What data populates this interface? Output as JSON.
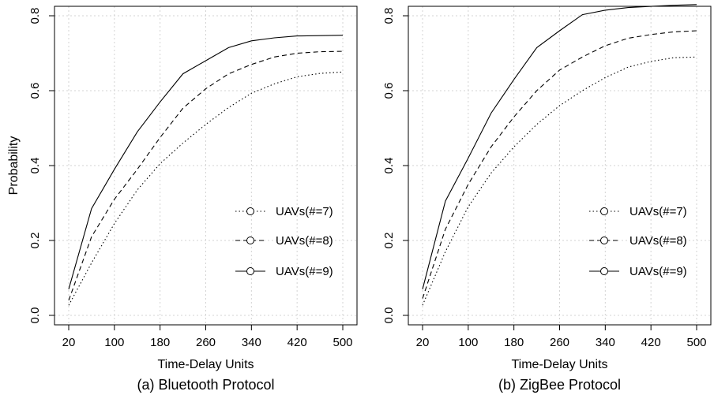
{
  "chart_data": [
    {
      "type": "line",
      "caption": "(a) Bluetooth Protocol",
      "xlabel": "Time-Delay Units",
      "ylabel": "Probability",
      "xlim": [
        20,
        500
      ],
      "ylim": [
        0,
        0.8
      ],
      "x_ticks": [
        20,
        100,
        180,
        260,
        340,
        420,
        500
      ],
      "y_ticks": [
        0.0,
        0.2,
        0.4,
        0.6,
        0.8
      ],
      "y_tick_labels": [
        "0.0",
        "0.2",
        "0.4",
        "0.6",
        "0.8"
      ],
      "grid": true,
      "legend_position": "right",
      "x": [
        20,
        60,
        100,
        140,
        180,
        220,
        260,
        300,
        340,
        380,
        420,
        460,
        500
      ],
      "series": [
        {
          "name": "UAVs(#=7)",
          "dash": "dotted",
          "values": [
            0.027,
            0.14,
            0.245,
            0.335,
            0.405,
            0.46,
            0.51,
            0.555,
            0.593,
            0.618,
            0.637,
            0.646,
            0.65
          ]
        },
        {
          "name": "UAVs(#=8)",
          "dash": "dashed",
          "values": [
            0.04,
            0.21,
            0.31,
            0.39,
            0.475,
            0.553,
            0.605,
            0.645,
            0.67,
            0.69,
            0.7,
            0.704,
            0.705
          ]
        },
        {
          "name": "UAVs(#=9)",
          "dash": "solid",
          "values": [
            0.07,
            0.285,
            0.39,
            0.49,
            0.57,
            0.645,
            0.68,
            0.715,
            0.733,
            0.741,
            0.746,
            0.747,
            0.748
          ]
        }
      ]
    },
    {
      "type": "line",
      "caption": "(b) ZigBee Protocol",
      "xlabel": "Time-Delay Units",
      "ylabel": "Probability",
      "xlim": [
        20,
        500
      ],
      "ylim": [
        0,
        0.8
      ],
      "x_ticks": [
        20,
        100,
        180,
        260,
        340,
        420,
        500
      ],
      "y_ticks": [
        0.0,
        0.2,
        0.4,
        0.6,
        0.8
      ],
      "y_tick_labels": [
        "0.0",
        "0.2",
        "0.4",
        "0.6",
        "0.8"
      ],
      "grid": true,
      "legend_position": "right",
      "x": [
        20,
        60,
        100,
        140,
        180,
        220,
        260,
        300,
        340,
        380,
        420,
        460,
        500
      ],
      "series": [
        {
          "name": "UAVs(#=7)",
          "dash": "dotted",
          "values": [
            0.027,
            0.17,
            0.29,
            0.38,
            0.45,
            0.51,
            0.56,
            0.6,
            0.635,
            0.663,
            0.678,
            0.688,
            0.69
          ]
        },
        {
          "name": "UAVs(#=8)",
          "dash": "dashed",
          "values": [
            0.045,
            0.23,
            0.35,
            0.45,
            0.53,
            0.6,
            0.655,
            0.69,
            0.72,
            0.74,
            0.75,
            0.757,
            0.76
          ]
        },
        {
          "name": "UAVs(#=9)",
          "dash": "solid",
          "values": [
            0.07,
            0.305,
            0.42,
            0.54,
            0.63,
            0.715,
            0.76,
            0.803,
            0.815,
            0.822,
            0.825,
            0.828,
            0.83
          ]
        }
      ]
    }
  ]
}
